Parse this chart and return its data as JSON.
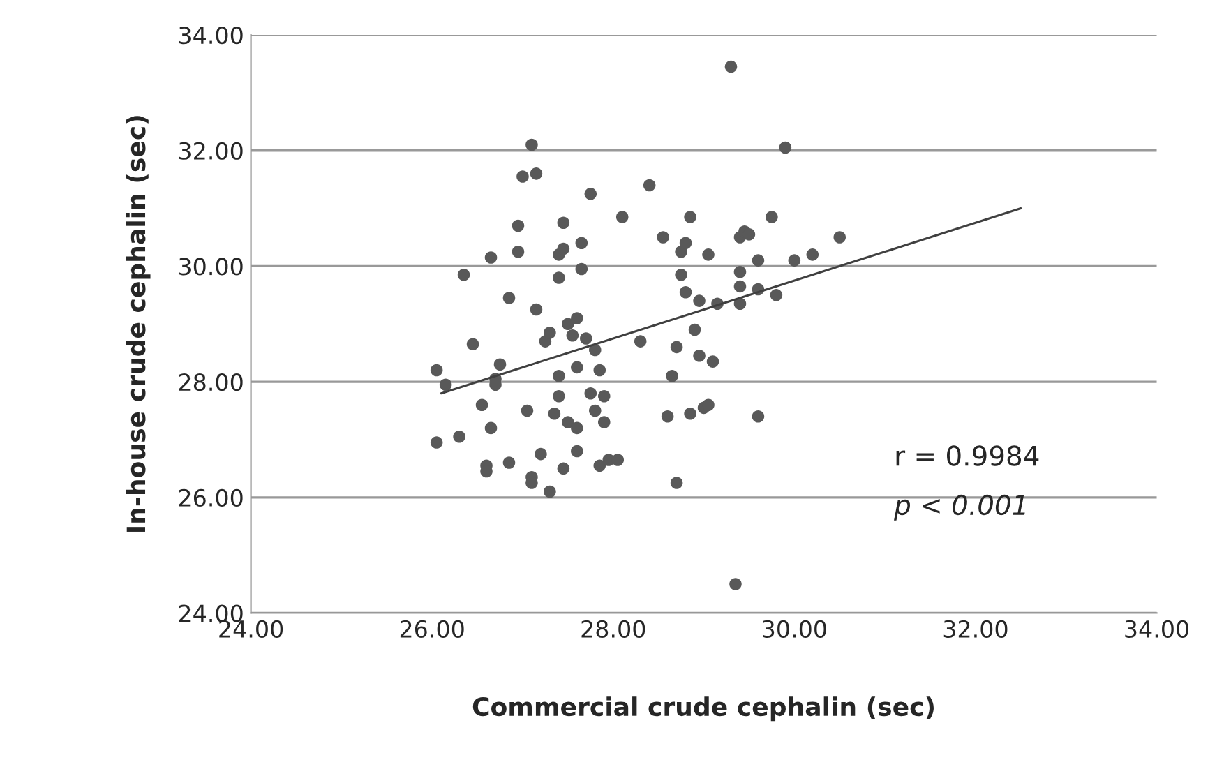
{
  "chart_data": {
    "type": "scatter",
    "xlabel": "Commercial crude cephalin (sec)",
    "ylabel": "In-house crude cephalin (sec)",
    "xlim": [
      24,
      34
    ],
    "ylim": [
      24,
      34
    ],
    "xticks": [
      {
        "value": 24,
        "label": "24.00"
      },
      {
        "value": 26,
        "label": "26.00"
      },
      {
        "value": 28,
        "label": "28.00"
      },
      {
        "value": 30,
        "label": "30.00"
      },
      {
        "value": 32,
        "label": "32.00"
      },
      {
        "value": 34,
        "label": "34.00"
      }
    ],
    "yticks": [
      {
        "value": 24,
        "label": "24.00"
      },
      {
        "value": 26,
        "label": "26.00"
      },
      {
        "value": 28,
        "label": "28.00"
      },
      {
        "value": 30,
        "label": "30.00"
      },
      {
        "value": 32,
        "label": "32.00"
      },
      {
        "value": 34,
        "label": "34.00"
      }
    ],
    "grid": "y",
    "annotations": [
      {
        "text": "r = 0.9984"
      },
      {
        "text": "p < 0.001"
      }
    ],
    "series": [
      {
        "marker": "circle",
        "color": "#595959",
        "x": [
          26.05,
          26.15,
          26.05,
          26.3,
          26.35,
          26.45,
          26.55,
          26.6,
          26.6,
          26.65,
          26.65,
          26.7,
          26.75,
          26.7,
          26.85,
          26.85,
          26.95,
          26.95,
          27.0,
          27.1,
          27.15,
          27.05,
          27.1,
          27.1,
          27.2,
          27.15,
          27.25,
          27.3,
          27.3,
          27.35,
          27.4,
          27.4,
          27.45,
          27.4,
          27.4,
          27.45,
          27.45,
          27.5,
          27.5,
          27.55,
          27.6,
          27.6,
          27.6,
          27.6,
          27.65,
          27.65,
          27.7,
          27.75,
          27.75,
          27.8,
          27.8,
          27.85,
          27.85,
          27.9,
          27.9,
          27.95,
          28.05,
          28.1,
          28.3,
          28.4,
          28.55,
          28.6,
          28.7,
          28.65,
          28.7,
          28.75,
          28.75,
          28.8,
          28.8,
          28.85,
          28.85,
          28.9,
          28.95,
          28.95,
          29.0,
          29.05,
          29.05,
          29.1,
          29.15,
          29.3,
          29.35,
          29.4,
          29.45,
          29.4,
          29.4,
          29.4,
          29.5,
          29.6,
          29.6,
          29.6,
          29.75,
          29.8,
          29.9,
          30.0,
          30.2,
          30.5
        ],
        "values": [
          28.2,
          27.95,
          26.95,
          27.05,
          29.85,
          28.65,
          27.6,
          26.55,
          26.45,
          30.15,
          27.2,
          28.05,
          28.3,
          27.95,
          26.6,
          29.45,
          30.25,
          30.7,
          31.55,
          32.1,
          31.6,
          27.5,
          26.35,
          26.25,
          26.75,
          29.25,
          28.7,
          28.85,
          26.1,
          27.45,
          28.1,
          27.75,
          26.5,
          29.8,
          30.2,
          30.3,
          30.75,
          29.0,
          27.3,
          28.8,
          29.1,
          28.25,
          27.2,
          26.8,
          30.4,
          29.95,
          28.75,
          31.25,
          27.8,
          28.55,
          27.5,
          28.2,
          26.55,
          27.75,
          27.3,
          26.65,
          26.65,
          30.85,
          28.7,
          31.4,
          30.5,
          27.4,
          26.25,
          28.1,
          28.6,
          29.85,
          30.25,
          30.4,
          29.55,
          27.45,
          30.85,
          28.9,
          29.4,
          28.45,
          27.55,
          27.6,
          30.2,
          28.35,
          29.35,
          33.45,
          24.5,
          30.5,
          30.6,
          29.9,
          29.65,
          29.35,
          30.55,
          30.1,
          27.4,
          29.6,
          30.85,
          29.5,
          32.05,
          30.1,
          30.2,
          30.5
        ]
      },
      {
        "type": "line",
        "marker": "none",
        "color": "#404040",
        "x": [
          26.1,
          32.5
        ],
        "values": [
          27.8,
          31.0
        ]
      }
    ]
  }
}
